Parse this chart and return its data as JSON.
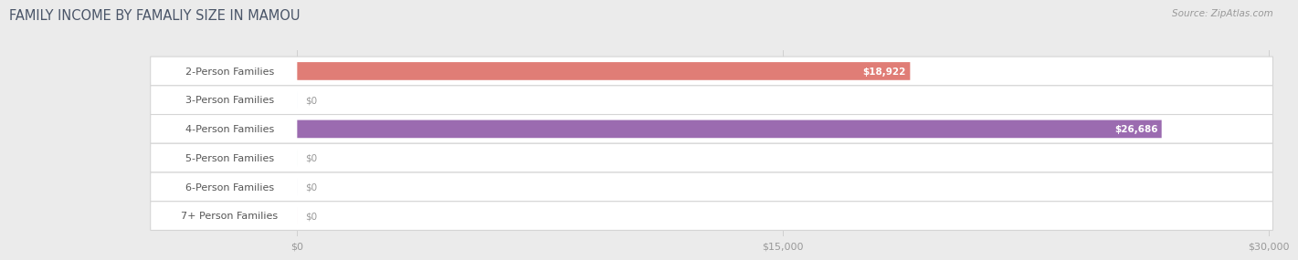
{
  "title": "FAMILY INCOME BY FAMALIY SIZE IN MAMOU",
  "source": "Source: ZipAtlas.com",
  "categories": [
    "2-Person Families",
    "3-Person Families",
    "4-Person Families",
    "5-Person Families",
    "6-Person Families",
    "7+ Person Families"
  ],
  "values": [
    18922,
    0,
    26686,
    0,
    0,
    0
  ],
  "bar_colors": [
    "#E07D76",
    "#90B8D8",
    "#9B6BB0",
    "#5BB8A8",
    "#9898CC",
    "#F0A0B8"
  ],
  "value_labels": [
    "$18,922",
    "$0",
    "$26,686",
    "$0",
    "$0",
    "$0"
  ],
  "xlim_max": 30000,
  "xtick_values": [
    0,
    15000,
    30000
  ],
  "xtick_labels": [
    "$0",
    "$15,000",
    "$30,000"
  ],
  "title_fontsize": 10.5,
  "bar_height": 0.62,
  "row_padding": 0.19,
  "background_color": "#EBEBEB",
  "row_bg_color": "#FFFFFF",
  "row_border_color": "#D5D5D5",
  "grid_color": "#D0D0D0",
  "title_color": "#4A5568",
  "label_text_color": "#555555",
  "value_text_color_white": "#FFFFFF",
  "value_text_color_dark": "#999999",
  "source_color": "#999999",
  "label_fontsize": 8.0,
  "value_fontsize": 7.5,
  "source_fontsize": 7.5,
  "xtick_fontsize": 8.0
}
